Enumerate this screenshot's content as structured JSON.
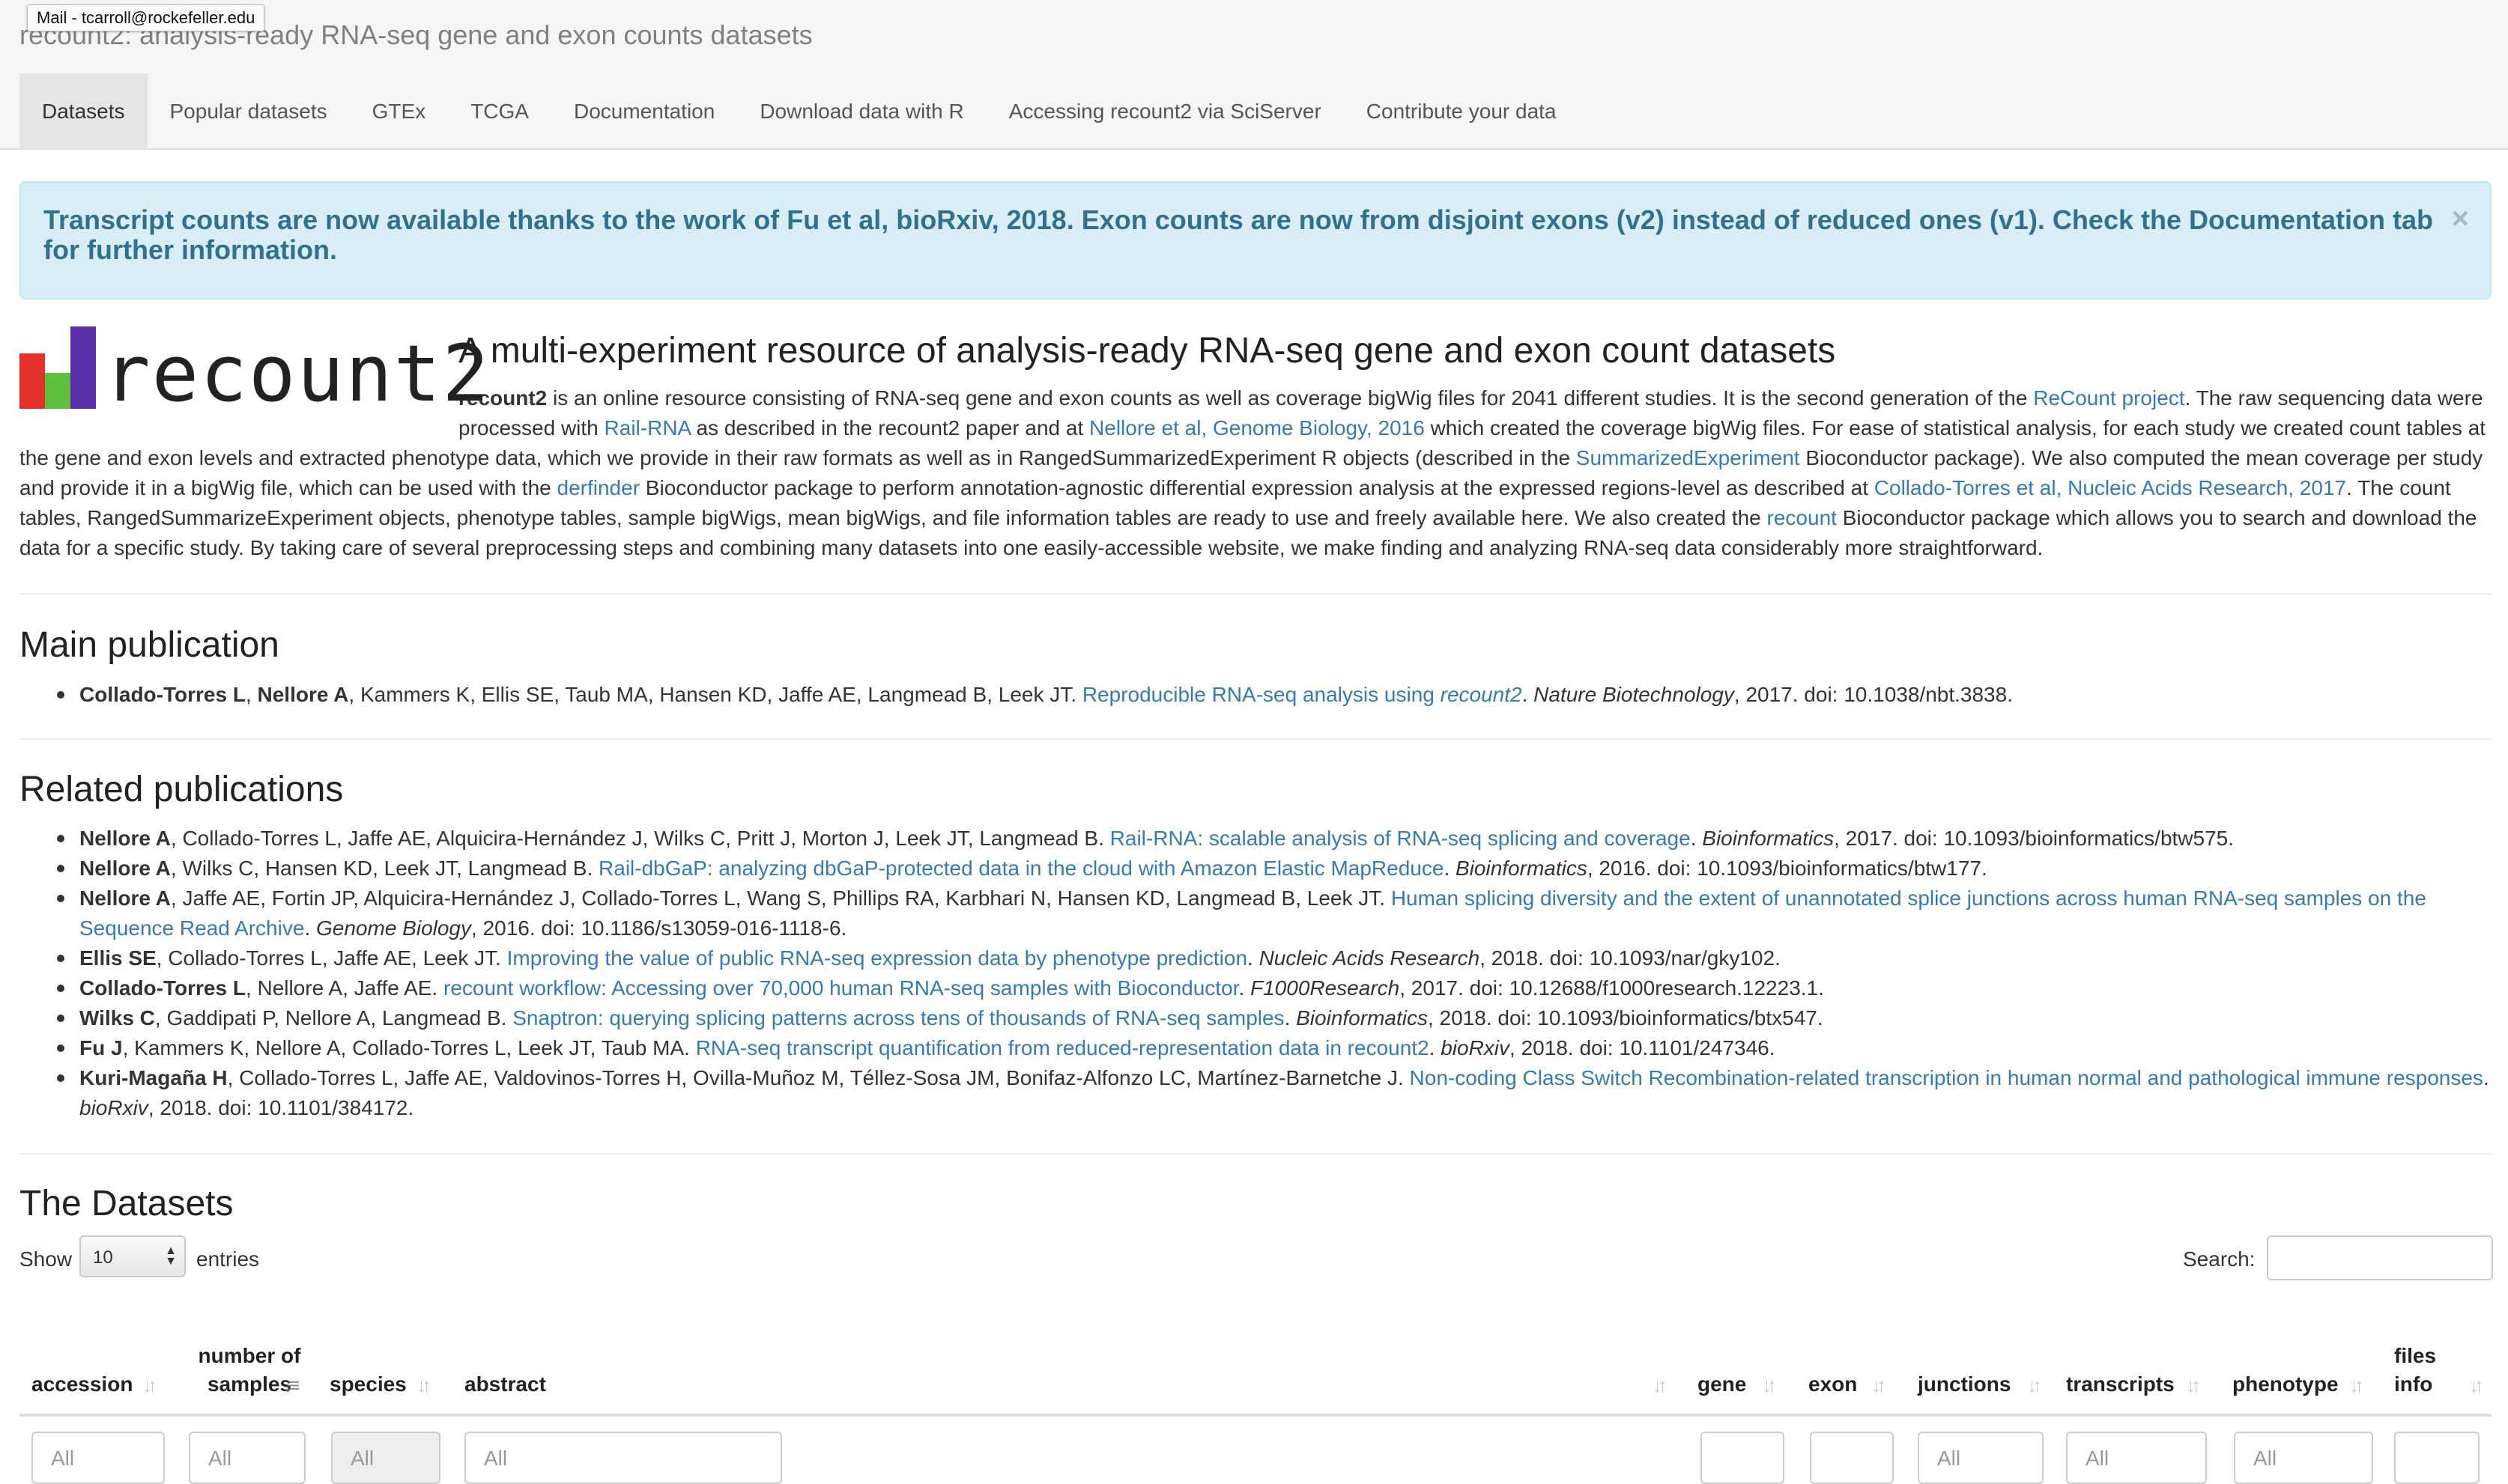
{
  "window": {
    "title": "recount2: analysis-ready RNA-seq gene and exon counts datasets",
    "tooltip": "Mail - tcarroll@rockefeller.edu"
  },
  "nav": {
    "tabs": [
      {
        "label": "Datasets",
        "active": true
      },
      {
        "label": "Popular datasets"
      },
      {
        "label": "GTEx"
      },
      {
        "label": "TCGA"
      },
      {
        "label": "Documentation"
      },
      {
        "label": "Download data with R"
      },
      {
        "label": "Accessing recount2 via SciServer"
      },
      {
        "label": "Contribute your data"
      }
    ]
  },
  "alert": {
    "text": "Transcript counts are now available thanks to the work of Fu et al, bioRxiv, 2018. Exon counts are now from disjoint exons (v2) instead of reduced ones (v1). Check the Documentation tab for further information.",
    "close": "×"
  },
  "intro": {
    "logo_text": "recount2",
    "heading": "A multi-experiment resource of analysis-ready RNA-seq gene and exon count datasets",
    "p1_bold": "recount2",
    "p1_a": " is an online resource consisting of RNA-seq gene and exon counts as well as coverage bigWig files for 2041 different studies. It is the second generation of the ",
    "link_recount_project": "ReCount project",
    "p1_b": ". The raw sequencing data were processed with ",
    "link_rail_rna": "Rail-RNA",
    "p1_c": " as described in the recount2 paper and at ",
    "link_nellore": "Nellore et al, Genome Biology, 2016",
    "p1_d": " which created the coverage bigWig files. For ease of statistical analysis, for each study we created count tables at the gene and exon levels and extracted phenotype data, which we provide in their raw formats as well as in RangedSummarizedExperiment R objects (described in the ",
    "link_se": "SummarizedExperiment",
    "p1_e": " Bioconductor package). We also computed the mean coverage per study and provide it in a bigWig file, which can be used with the ",
    "link_derfinder": "derfinder",
    "p1_f": " Bioconductor package to perform annotation-agnostic differential expression analysis at the expressed regions-level as described at ",
    "link_collado": "Collado-Torres et al, Nucleic Acids Research, 2017",
    "p1_g": ". The count tables, RangedSummarizeExperiment objects, phenotype tables, sample bigWigs, mean bigWigs, and file information tables are ready to use and freely available here. We also created the ",
    "link_recount": "recount",
    "p1_h": " Bioconductor package which allows you to search and download the data for a specific study. By taking care of several preprocessing steps and combining many datasets into one easily-accessible website, we make finding and analyzing RNA-seq data considerably more straightforward."
  },
  "main_publication": {
    "title": "Main publication",
    "authors_bold": "Collado-Torres L",
    "sep": ", ",
    "authors_bold2": "Nellore A",
    "authors_rest": ", Kammers K, Ellis SE, Taub MA, Hansen KD, Jaffe AE, Langmead B, Leek JT. ",
    "link_text": "Reproducible RNA-seq analysis using ",
    "link_italic": "recount2",
    "after_link": ". ",
    "journal": "Nature Biotechnology",
    "rest": ", 2017. doi: 10.1038/nbt.3838."
  },
  "related": {
    "title": "Related publications",
    "items": [
      {
        "bold": "Nellore A",
        "authors": ", Collado-Torres L, Jaffe AE, Alquicira-Hernández J, Wilks C, Pritt J, Morton J, Leek JT, Langmead B. ",
        "link": "Rail-RNA: scalable analysis of RNA-seq splicing and coverage",
        "dot": ". ",
        "journal": "Bioinformatics",
        "rest": ", 2017. doi: 10.1093/bioinformatics/btw575."
      },
      {
        "bold": "Nellore A",
        "authors": ", Wilks C, Hansen KD, Leek JT, Langmead B. ",
        "link": "Rail-dbGaP: analyzing dbGaP-protected data in the cloud with Amazon Elastic MapReduce",
        "dot": ". ",
        "journal": "Bioinformatics",
        "rest": ", 2016. doi: 10.1093/bioinformatics/btw177."
      },
      {
        "bold": "Nellore A",
        "authors": ", Jaffe AE, Fortin JP, Alquicira-Hernández J, Collado-Torres L, Wang S, Phillips RA, Karbhari N, Hansen KD, Langmead B, Leek JT. ",
        "link": "Human splicing diversity and the extent of unannotated splice junctions across human RNA-seq samples on the Sequence Read Archive",
        "dot": ". ",
        "journal": "Genome Biology",
        "rest": ", 2016. doi: 10.1186/s13059-016-1118-6."
      },
      {
        "bold": "Ellis SE",
        "authors": ", Collado-Torres L, Jaffe AE, Leek JT. ",
        "link": "Improving the value of public RNA-seq expression data by phenotype prediction",
        "dot": ". ",
        "journal": "Nucleic Acids Research",
        "rest": ", 2018. doi: 10.1093/nar/gky102."
      },
      {
        "bold": "Collado-Torres L",
        "authors": ", Nellore A, Jaffe AE. ",
        "link": "recount workflow: Accessing over 70,000 human RNA-seq samples with Bioconductor",
        "dot": ". ",
        "journal": "F1000Research",
        "rest": ", 2017. doi: 10.12688/f1000research.12223.1."
      },
      {
        "bold": "Wilks C",
        "authors": ", Gaddipati P, Nellore A, Langmead B. ",
        "link": "Snaptron: querying splicing patterns across tens of thousands of RNA-seq samples",
        "dot": ". ",
        "journal": "Bioinformatics",
        "rest": ", 2018. doi: 10.1093/bioinformatics/btx547."
      },
      {
        "bold": "Fu J",
        "authors": ", Kammers K, Nellore A, Collado-Torres L, Leek JT, Taub MA. ",
        "link": "RNA-seq transcript quantification from reduced-representation data in recount2",
        "dot": ". ",
        "journal": "bioRxiv",
        "rest": ", 2018. doi: 10.1101/247346."
      },
      {
        "bold": "Kuri-Magaña H",
        "authors": ", Collado-Torres L, Jaffe AE, Valdovinos-Torres H, Ovilla-Muñoz M, Téllez-Sosa JM, Bonifaz-Alfonzo LC, Martínez-Barnetche J. ",
        "link": "Non-coding Class Switch Recombination-related transcription in human normal and pathological immune responses",
        "dot": ". ",
        "journal": "bioRxiv",
        "rest": ", 2018. doi: 10.1101/384172."
      }
    ]
  },
  "datasets": {
    "title": "The Datasets",
    "show_label": "Show",
    "show_value": "10",
    "entries_label": "entries",
    "search_label": "Search:",
    "search_value": "",
    "columns": [
      {
        "label": "accession"
      },
      {
        "label": "number of samples"
      },
      {
        "label": "species"
      },
      {
        "label": "abstract"
      },
      {
        "label": "gene"
      },
      {
        "label": "exon"
      },
      {
        "label": "junctions"
      },
      {
        "label": "transcripts"
      },
      {
        "label": "phenotype"
      },
      {
        "label": "files info"
      }
    ],
    "filter_placeholder": "All"
  }
}
